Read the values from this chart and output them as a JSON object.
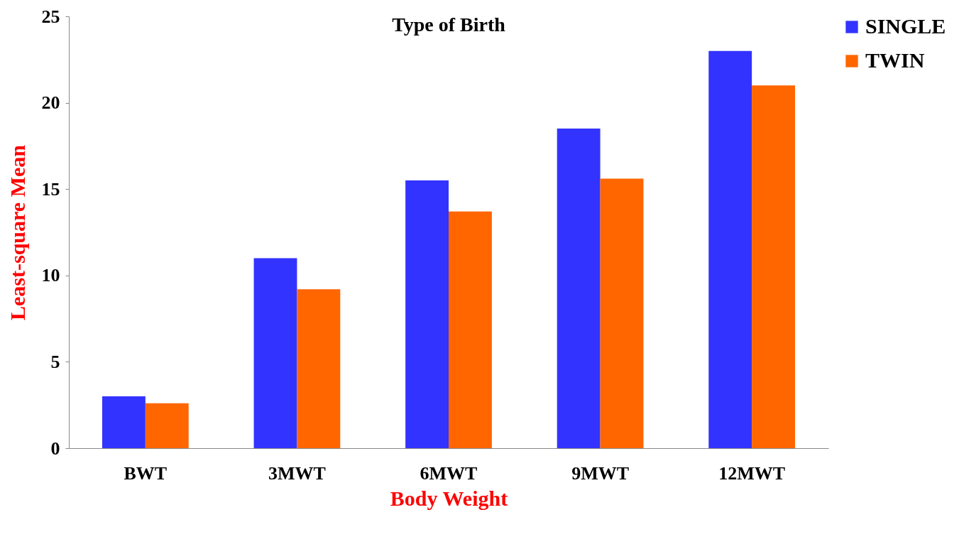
{
  "chart_data": {
    "type": "bar",
    "title": "Type of Birth",
    "xlabel": "Body Weight",
    "ylabel": "Least-square Mean",
    "categories": [
      "BWT",
      "3MWT",
      "6MWT",
      "9MWT",
      "12MWT"
    ],
    "series": [
      {
        "name": "SINGLE",
        "color": "#3333ff",
        "values": [
          3.0,
          11.0,
          15.5,
          18.5,
          23.0
        ]
      },
      {
        "name": "TWIN",
        "color": "#ff6600",
        "values": [
          2.6,
          9.2,
          13.7,
          15.6,
          21.0
        ]
      }
    ],
    "ylim": [
      0,
      25
    ],
    "yticks": [
      0,
      5,
      10,
      15,
      20,
      25
    ],
    "grid": false,
    "legend": "right"
  }
}
